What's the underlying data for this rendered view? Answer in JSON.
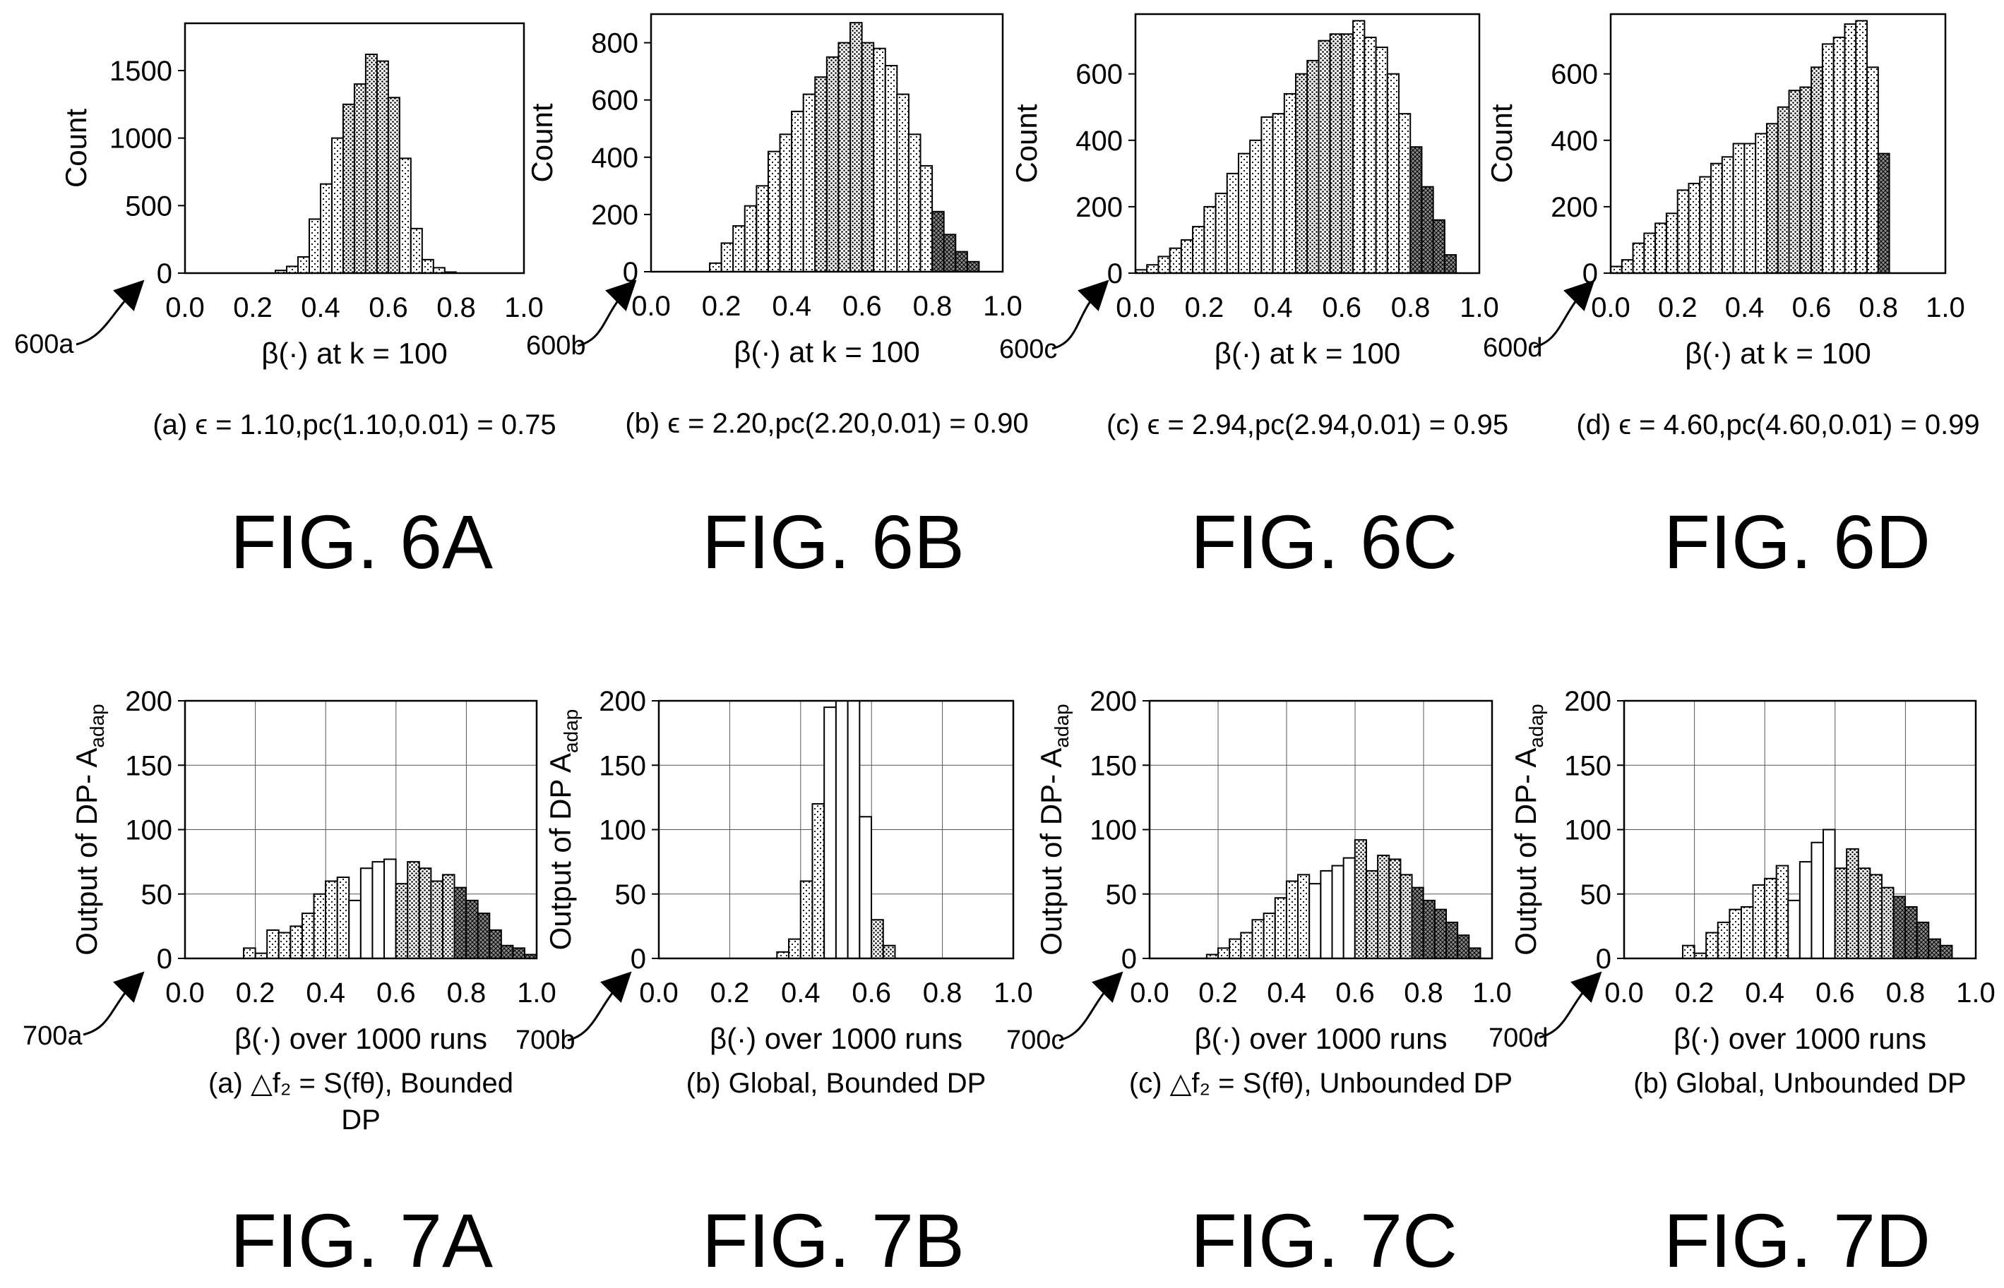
{
  "patterns": {
    "p1": "#ffffff",
    "p2": "#cfcfcf",
    "p3": "#a8a8a8",
    "p4": "#6a6a6a",
    "outline": "#000000"
  },
  "chart_data": [
    {
      "type": "bar",
      "ref_label": "600a",
      "ylabel": "Count",
      "xlabel": "β(·) at k = 100",
      "caption_lines": [
        "(a) ϵ = 1.10,pc(1.10,0.01) = 0.75"
      ],
      "fig_label": "FIG. 6A",
      "xlim": [
        0,
        1
      ],
      "ylim": [
        0,
        1500
      ],
      "xticks": [
        0.0,
        0.2,
        0.4,
        0.6,
        0.8,
        1.0
      ],
      "xtick_labels": [
        "0.0",
        "0.2",
        "0.4",
        "0.6",
        "0.8",
        "1.0"
      ],
      "yticks": [
        0,
        500,
        1000,
        1500
      ],
      "ytick_labels": [
        "0",
        "500",
        "1000",
        "1500"
      ],
      "bin_width": 0.0333,
      "bin_start": 0.2667,
      "values": [
        20,
        50,
        120,
        400,
        660,
        1000,
        1250,
        1400,
        1620,
        1570,
        1300,
        850,
        330,
        100,
        40,
        8
      ]
    },
    {
      "type": "bar",
      "ref_label": "600b",
      "ylabel": "Count",
      "xlabel": "β(·) at k = 100",
      "caption_lines": [
        "(b) ϵ = 2.20,pc(2.20,0.01) = 0.90"
      ],
      "fig_label": "FIG. 6B",
      "xlim": [
        0,
        1
      ],
      "ylim": [
        0,
        800
      ],
      "xticks": [
        0.0,
        0.2,
        0.4,
        0.6,
        0.8,
        1.0
      ],
      "xtick_labels": [
        "0.0",
        "0.2",
        "0.4",
        "0.6",
        "0.8",
        "1.0"
      ],
      "yticks": [
        0,
        200,
        400,
        600,
        800
      ],
      "ytick_labels": [
        "0",
        "200",
        "400",
        "600",
        "800"
      ],
      "bin_width": 0.0333,
      "bin_start": 0.1667,
      "values": [
        30,
        100,
        160,
        230,
        300,
        420,
        480,
        560,
        620,
        680,
        750,
        800,
        870,
        800,
        780,
        720,
        620,
        480,
        370,
        210,
        130,
        70,
        35
      ]
    },
    {
      "type": "bar",
      "ref_label": "600c",
      "ylabel": "Count",
      "xlabel": "β(·) at k = 100",
      "caption_lines": [
        "(c) ϵ = 2.94,pc(2.94,0.01) = 0.95"
      ],
      "fig_label": "FIG. 6C",
      "xlim": [
        0,
        1
      ],
      "ylim": [
        0,
        600
      ],
      "xticks": [
        0.0,
        0.2,
        0.4,
        0.6,
        0.8,
        1.0
      ],
      "xtick_labels": [
        "0.0",
        "0.2",
        "0.4",
        "0.6",
        "0.8",
        "1.0"
      ],
      "yticks": [
        0,
        200,
        400,
        600
      ],
      "ytick_labels": [
        "0",
        "200",
        "400",
        "600"
      ],
      "bin_width": 0.0333,
      "bin_start": 0.0,
      "values": [
        10,
        25,
        50,
        75,
        100,
        140,
        200,
        240,
        300,
        360,
        400,
        470,
        480,
        540,
        600,
        640,
        700,
        720,
        720,
        760,
        710,
        680,
        600,
        480,
        380,
        260,
        160,
        55
      ]
    },
    {
      "type": "bar",
      "ref_label": "600d",
      "ylabel": "Count",
      "xlabel": "β(·) at k = 100",
      "caption_lines": [
        "(d) ϵ = 4.60,pc(4.60,0.01) = 0.99"
      ],
      "fig_label": "FIG. 6D",
      "xlim": [
        0,
        1
      ],
      "ylim": [
        0,
        600
      ],
      "xticks": [
        0.0,
        0.2,
        0.4,
        0.6,
        0.8,
        1.0
      ],
      "xtick_labels": [
        "0.0",
        "0.2",
        "0.4",
        "0.6",
        "0.8",
        "1.0"
      ],
      "yticks": [
        0,
        200,
        400,
        600
      ],
      "ytick_labels": [
        "0",
        "200",
        "400",
        "600"
      ],
      "bin_width": 0.0333,
      "bin_start": 0.0,
      "values": [
        20,
        40,
        90,
        120,
        150,
        180,
        250,
        270,
        290,
        330,
        350,
        390,
        390,
        420,
        450,
        500,
        550,
        560,
        620,
        690,
        710,
        750,
        760,
        620,
        360
      ]
    },
    {
      "type": "bar",
      "ref_label": "700a",
      "ylabel": "Output of DP- A",
      "ylabel_sub": "adap",
      "xlabel": "β(·) over 1000 runs",
      "caption_lines": [
        "(a) △f₂ = S(fθ), Bounded",
        "DP"
      ],
      "fig_label": "FIG. 7A",
      "xlim": [
        0,
        1
      ],
      "ylim": [
        0,
        200
      ],
      "xticks": [
        0.0,
        0.2,
        0.4,
        0.6,
        0.8,
        1.0
      ],
      "xtick_labels": [
        "0.0",
        "0.2",
        "0.4",
        "0.6",
        "0.8",
        "1.0"
      ],
      "yticks": [
        0,
        50,
        100,
        150,
        200
      ],
      "ytick_labels": [
        "0",
        "50",
        "100",
        "150",
        "200"
      ],
      "bin_width": 0.0333,
      "bin_start": 0.1667,
      "values": [
        8,
        4,
        22,
        20,
        25,
        35,
        50,
        60,
        63,
        45,
        70,
        75,
        77,
        58,
        75,
        70,
        60,
        65,
        55,
        45,
        35,
        22,
        10,
        8,
        3
      ]
    },
    {
      "type": "bar",
      "ref_label": "700b",
      "ylabel": "Output of DP A",
      "ylabel_sub": "adap",
      "xlabel": "β(·) over 1000 runs",
      "caption_lines": [
        "(b) Global, Bounded DP"
      ],
      "fig_label": "FIG. 7B",
      "xlim": [
        0,
        1
      ],
      "ylim": [
        0,
        200
      ],
      "xticks": [
        0.0,
        0.2,
        0.4,
        0.6,
        0.8,
        1.0
      ],
      "xtick_labels": [
        "0.0",
        "0.2",
        "0.4",
        "0.6",
        "0.8",
        "1.0"
      ],
      "yticks": [
        0,
        50,
        100,
        150,
        200
      ],
      "ytick_labels": [
        "0",
        "50",
        "100",
        "150",
        "200"
      ],
      "bin_width": 0.0333,
      "bin_start": 0.3333,
      "values": [
        5,
        15,
        60,
        120,
        195,
        205,
        205,
        110,
        30,
        10
      ]
    },
    {
      "type": "bar",
      "ref_label": "700c",
      "ylabel": "Output of DP- A",
      "ylabel_sub": "adap",
      "xlabel": "β(·) over 1000 runs",
      "caption_lines": [
        "(c) △f₂ = S(fθ), Unbounded DP"
      ],
      "fig_label": "FIG. 7C",
      "xlim": [
        0,
        1
      ],
      "ylim": [
        0,
        200
      ],
      "xticks": [
        0.0,
        0.2,
        0.4,
        0.6,
        0.8,
        1.0
      ],
      "xtick_labels": [
        "0.0",
        "0.2",
        "0.4",
        "0.6",
        "0.8",
        "1.0"
      ],
      "yticks": [
        0,
        50,
        100,
        150,
        200
      ],
      "ytick_labels": [
        "0",
        "50",
        "100",
        "150",
        "200"
      ],
      "bin_width": 0.0333,
      "bin_start": 0.1667,
      "values": [
        3,
        8,
        15,
        20,
        30,
        35,
        47,
        60,
        65,
        58,
        68,
        72,
        78,
        92,
        68,
        80,
        77,
        65,
        55,
        45,
        38,
        28,
        18,
        8
      ]
    },
    {
      "type": "bar",
      "ref_label": "700d",
      "ylabel": "Output of DP- A",
      "ylabel_sub": "adap",
      "xlabel": "β(·) over 1000 runs",
      "caption_lines": [
        "(b) Global, Unbounded DP"
      ],
      "fig_label": "FIG. 7D",
      "xlim": [
        0,
        1
      ],
      "ylim": [
        0,
        200
      ],
      "xticks": [
        0.0,
        0.2,
        0.4,
        0.6,
        0.8,
        1.0
      ],
      "xtick_labels": [
        "0.0",
        "0.2",
        "0.4",
        "0.6",
        "0.8",
        "1.0"
      ],
      "yticks": [
        0,
        50,
        100,
        150,
        200
      ],
      "ytick_labels": [
        "0",
        "50",
        "100",
        "150",
        "200"
      ],
      "bin_width": 0.0333,
      "bin_start": 0.1667,
      "values": [
        10,
        4,
        20,
        28,
        38,
        40,
        57,
        62,
        72,
        45,
        75,
        90,
        100,
        70,
        85,
        70,
        65,
        55,
        48,
        40,
        28,
        15,
        10
      ]
    }
  ]
}
